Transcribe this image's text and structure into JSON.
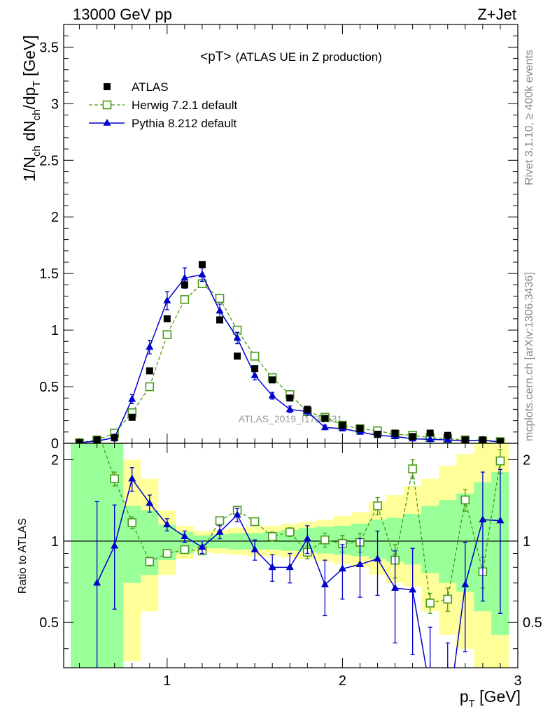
{
  "chart_data": {
    "type": "scatter",
    "header_left": "13000 GeV pp",
    "header_right": "Z+Jet",
    "title_main": "<pT>",
    "title_sub": "(ATLAS UE in Z production)",
    "watermark": "ATLAS_2019_I1736531",
    "side_text_top": "Rivet 3.1.10, ≥ 400k events",
    "side_text_bottom": "mcplots.cern.ch [arXiv:1306.3436]",
    "xlabel": "p_T [GeV]",
    "ylabel_top": "1/N_ch dN_ch/dp_T [GeV]",
    "ylabel_bottom": "Ratio to ATLAS",
    "xlim": [
      0.41,
      3.0
    ],
    "ylim_top": [
      0,
      3.7
    ],
    "ylim_bottom": [
      0.34,
      2.3
    ],
    "x_ticks": [
      "1",
      "2",
      "3"
    ],
    "y_ticks_top": [
      "0",
      "0.5",
      "1",
      "1.5",
      "2",
      "2.5",
      "3",
      "3.5"
    ],
    "y_ticks_bottom": [
      "0.5",
      "1",
      "2"
    ],
    "colors": {
      "data": "#000000",
      "herwig": "#4a9a1a",
      "pythia": "#0000cc",
      "band_green": "#99ff99",
      "band_yellow": "#ffff99"
    },
    "x": [
      0.5,
      0.6,
      0.7,
      0.8,
      0.9,
      1.0,
      1.1,
      1.2,
      1.3,
      1.4,
      1.5,
      1.6,
      1.7,
      1.8,
      1.9,
      2.0,
      2.1,
      2.2,
      2.3,
      2.4,
      2.5,
      2.6,
      2.7,
      2.8,
      2.9
    ],
    "series": [
      {
        "name": "ATLAS",
        "values": [
          0.005,
          0.03,
          0.05,
          0.23,
          0.64,
          1.1,
          1.4,
          1.58,
          1.09,
          0.77,
          0.66,
          0.56,
          0.4,
          0.3,
          0.22,
          0.16,
          0.13,
          0.08,
          0.09,
          0.06,
          0.09,
          0.07,
          0.03,
          0.03,
          0.015
        ]
      },
      {
        "name": "Herwig 7.2.1 default",
        "values": [
          0.005,
          0.03,
          0.09,
          0.27,
          0.5,
          0.96,
          1.27,
          1.41,
          1.28,
          1.0,
          0.77,
          0.58,
          0.43,
          0.28,
          0.23,
          0.16,
          0.13,
          0.11,
          0.08,
          0.07,
          0.05,
          0.04,
          0.03,
          0.02,
          0.015
        ],
        "errors": [
          0,
          0,
          0,
          0.02,
          0.03,
          0.03,
          0.03,
          0.03,
          0.03,
          0.03,
          0.03,
          0.02,
          0.02,
          0.02,
          0.01,
          0.01,
          0.01,
          0.01,
          0.01,
          0.01,
          0.01,
          0.01,
          0.01,
          0.01,
          0.01
        ],
        "ratio": [
          null,
          null,
          1.7,
          1.17,
          0.84,
          0.9,
          0.93,
          0.92,
          1.19,
          1.3,
          1.18,
          1.04,
          1.08,
          0.91,
          1.01,
          0.98,
          0.99,
          1.35,
          0.85,
          1.85,
          0.59,
          0.61,
          1.42,
          0.77,
          1.98
        ],
        "ratio_errors": [
          0,
          0,
          0.1,
          0.06,
          0.03,
          0.02,
          0.02,
          0.02,
          0.03,
          0.03,
          0.03,
          0.04,
          0.04,
          0.05,
          0.06,
          0.07,
          0.08,
          0.1,
          0.12,
          0.15,
          0.05,
          0.06,
          0.13,
          0.1,
          0.2
        ]
      },
      {
        "name": "Pythia 8.212 default",
        "values": [
          0.005,
          0.02,
          0.05,
          0.39,
          0.85,
          1.26,
          1.46,
          1.49,
          1.17,
          0.93,
          0.6,
          0.42,
          0.3,
          0.28,
          0.14,
          0.13,
          0.1,
          0.07,
          0.06,
          0.04,
          0.035,
          0.03,
          0.02,
          0.03,
          0.01
        ],
        "errors": [
          0,
          0.01,
          0.03,
          0.04,
          0.06,
          0.08,
          0.09,
          0.06,
          0.06,
          0.05,
          0.04,
          0.03,
          0.03,
          0.03,
          0.02,
          0.02,
          0.02,
          0.01,
          0.01,
          0.01,
          0.01,
          0.01,
          0.01,
          0.01,
          0.01
        ],
        "ratio": [
          null,
          0.7,
          0.96,
          1.7,
          1.38,
          1.15,
          1.04,
          0.95,
          1.08,
          1.25,
          0.93,
          0.8,
          0.8,
          1.02,
          0.69,
          0.79,
          0.82,
          0.86,
          0.67,
          0.66,
          0.28,
          0.22,
          0.69,
          1.2,
          1.19
        ],
        "ratio_errors": [
          0,
          0.7,
          0.4,
          0.17,
          0.1,
          0.06,
          0.05,
          0.05,
          0.06,
          0.07,
          0.08,
          0.09,
          0.1,
          0.12,
          0.16,
          0.18,
          0.2,
          0.23,
          0.25,
          0.28,
          0.2,
          0.2,
          0.3,
          0.6,
          0.65
        ]
      }
    ],
    "bands": {
      "edges": [
        0.45,
        0.55,
        0.65,
        0.75,
        0.85,
        0.95,
        1.05,
        1.15,
        1.25,
        1.35,
        1.45,
        1.55,
        1.65,
        1.75,
        1.85,
        1.95,
        2.05,
        2.15,
        2.25,
        2.35,
        2.45,
        2.55,
        2.65,
        2.75,
        2.85,
        2.95
      ],
      "green": [
        [
          0.1,
          2.3
        ],
        [
          0.1,
          2.3
        ],
        [
          0.1,
          2.3
        ],
        [
          0.7,
          1.35
        ],
        [
          0.75,
          1.3
        ],
        [
          0.85,
          1.15
        ],
        [
          0.9,
          1.08
        ],
        [
          0.94,
          1.05
        ],
        [
          0.94,
          1.06
        ],
        [
          0.93,
          1.07
        ],
        [
          0.93,
          1.07
        ],
        [
          0.93,
          1.08
        ],
        [
          0.92,
          1.1
        ],
        [
          0.91,
          1.12
        ],
        [
          0.9,
          1.13
        ],
        [
          0.89,
          1.14
        ],
        [
          0.88,
          1.16
        ],
        [
          0.86,
          1.2
        ],
        [
          0.84,
          1.22
        ],
        [
          0.82,
          1.26
        ],
        [
          0.76,
          1.35
        ],
        [
          0.7,
          1.42
        ],
        [
          0.65,
          1.5
        ],
        [
          0.55,
          1.65
        ],
        [
          0.45,
          1.8
        ]
      ],
      "yellow": [
        [
          0.1,
          2.3
        ],
        [
          0.1,
          2.3
        ],
        [
          0.1,
          2.3
        ],
        [
          0.36,
          2.0
        ],
        [
          0.55,
          1.7
        ],
        [
          0.75,
          1.3
        ],
        [
          0.86,
          1.14
        ],
        [
          0.91,
          1.09
        ],
        [
          0.9,
          1.1
        ],
        [
          0.89,
          1.12
        ],
        [
          0.88,
          1.13
        ],
        [
          0.88,
          1.14
        ],
        [
          0.87,
          1.16
        ],
        [
          0.86,
          1.18
        ],
        [
          0.84,
          1.2
        ],
        [
          0.82,
          1.24
        ],
        [
          0.8,
          1.28
        ],
        [
          0.75,
          1.4
        ],
        [
          0.7,
          1.48
        ],
        [
          0.68,
          1.6
        ],
        [
          0.55,
          1.7
        ],
        [
          0.45,
          1.9
        ],
        [
          0.4,
          2.1
        ],
        [
          0.3,
          2.3
        ],
        [
          0.2,
          2.3
        ]
      ]
    }
  }
}
